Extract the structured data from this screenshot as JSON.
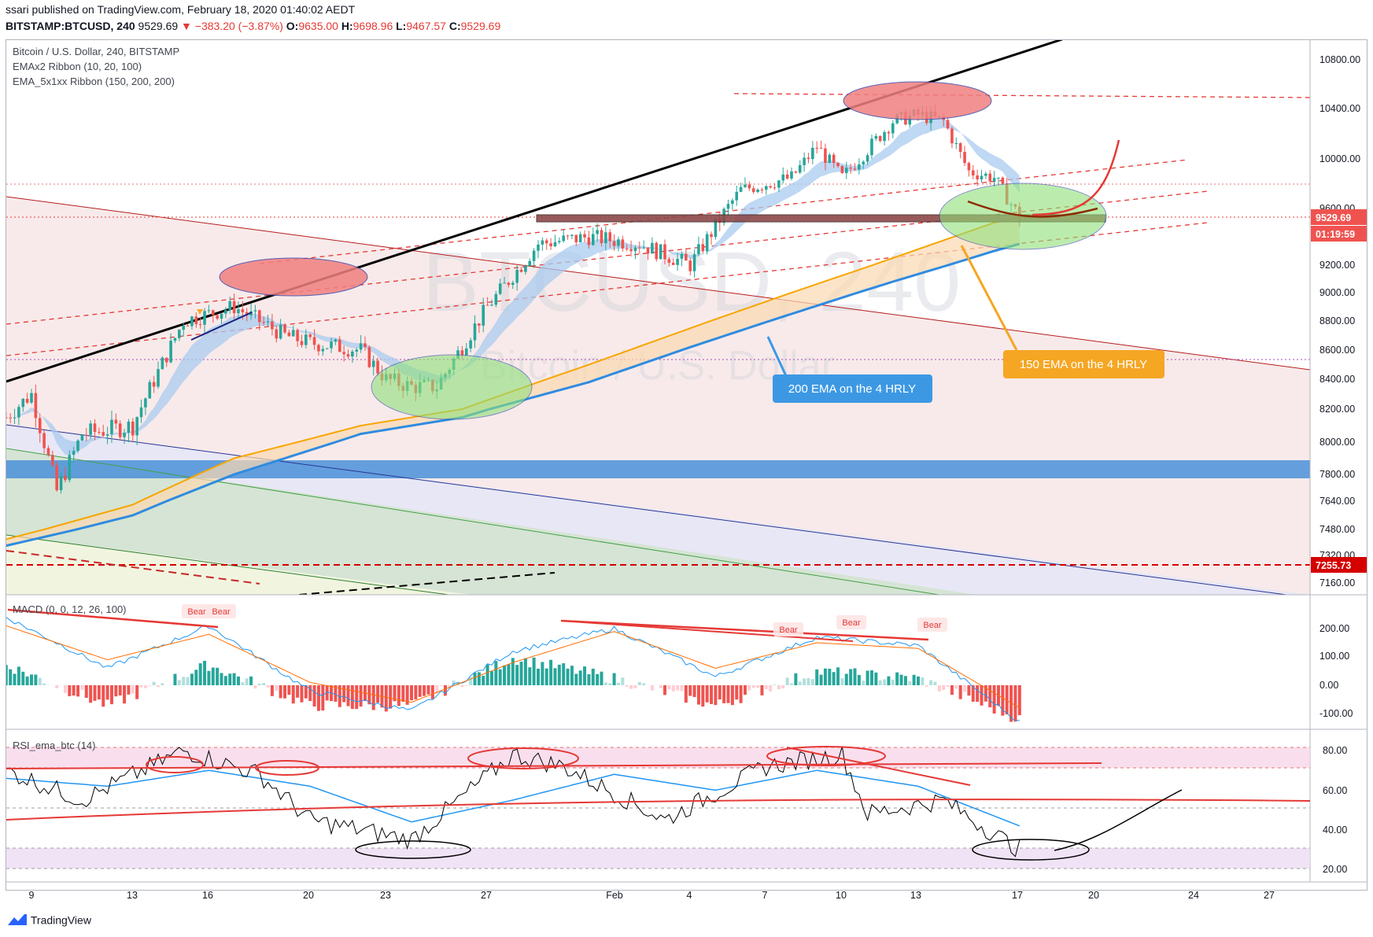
{
  "header": {
    "publisher": "ssari published on TradingView.com, February 18, 2020 01:40:02 AEDT",
    "symbol": "BITSTAMP:BTCUSD, 240",
    "last": "9529.69",
    "change": "−383.20 (−3.87%)",
    "o_label": "O:",
    "o": "9635.00",
    "h_label": "H:",
    "h": "9698.96",
    "l_label": "L:",
    "l": "9467.57",
    "c_label": "C:",
    "c": "9529.69"
  },
  "price_pane": {
    "title": "Bitcoin / U.S. Dollar, 240, BITSTAMP",
    "indicator1": "EMAx2 Ribbon (10, 20, 100)",
    "indicator2": "EMA_5x1xx Ribbon  (150, 200, 200)",
    "watermark_symbol": "BTCUSD, 240",
    "watermark_name": "Bitcoin / U.S. Dollar",
    "price_badge": "9529.69",
    "countdown_badge": "01:19:59",
    "level_badge": "7255.73",
    "callout_200": "200 EMA on the 4 HRLY",
    "callout_150": "150 EMA on the 4 HRLY"
  },
  "macd_pane": {
    "title": "MACD (0, 0, 12, 26, 100)",
    "bear_label": "Bear"
  },
  "rsi_pane": {
    "title": "RSI_ema_btc (14)"
  },
  "footer": {
    "brand": "TradingView"
  },
  "colors": {
    "up": "#26a69a",
    "down": "#ef5350",
    "ema150": "#f7a600",
    "ema200": "#2f8be0",
    "ribbon": "#a9cbef",
    "callout_blue": "#3d98e4",
    "callout_orange": "#f5a623"
  },
  "chart_data": [
    {
      "type": "line",
      "title": "Bitcoin / U.S. Dollar, 240, BITSTAMP",
      "x_tick_labels": [
        "9",
        "13",
        "16",
        "20",
        "23",
        "27",
        "Feb",
        "4",
        "7",
        "10",
        "13",
        "17",
        "20",
        "24",
        "27"
      ],
      "y_tick_labels": [
        "10800.00",
        "10400.00",
        "10000.00",
        "9600.00",
        "9200.00",
        "9000.00",
        "8800.00",
        "8600.00",
        "8400.00",
        "8200.00",
        "8000.00",
        "7800.00",
        "7640.00",
        "7480.00",
        "7320.00",
        "7160.00"
      ],
      "ylim": [
        7060,
        11000
      ],
      "series": [
        {
          "name": "BTCUSD",
          "x": [
            "Jan 8",
            "Jan 9",
            "Jan 10",
            "Jan 11",
            "Jan 13",
            "Jan 15",
            "Jan 17",
            "Jan 19",
            "Jan 20",
            "Jan 22",
            "Jan 23",
            "Jan 24",
            "Jan 25",
            "Jan 27",
            "Jan 29",
            "Jan 31",
            "Feb 2",
            "Feb 4",
            "Feb 6",
            "Feb 8",
            "Feb 9",
            "Feb 10",
            "Feb 12",
            "Feb 13",
            "Feb 14",
            "Feb 15",
            "Feb 16",
            "Feb 17"
          ],
          "values": [
            8150,
            8300,
            7700,
            8050,
            8100,
            8800,
            8900,
            8700,
            8650,
            8600,
            8400,
            8350,
            8350,
            8900,
            9350,
            9400,
            9350,
            9200,
            9750,
            9850,
            10100,
            9850,
            10300,
            10350,
            10300,
            9900,
            9850,
            9530
          ]
        },
        {
          "name": "EMA 150",
          "x": [
            "Jan 8",
            "Jan 13",
            "Jan 17",
            "Jan 22",
            "Jan 26",
            "Jan 31",
            "Feb 4",
            "Feb 8",
            "Feb 12",
            "Feb 16",
            "Feb 17"
          ],
          "values": [
            7420,
            7620,
            7900,
            8100,
            8200,
            8500,
            8750,
            9000,
            9250,
            9500,
            9540
          ]
        },
        {
          "name": "EMA 200",
          "x": [
            "Jan 8",
            "Jan 13",
            "Jan 17",
            "Jan 22",
            "Jan 26",
            "Jan 31",
            "Feb 4",
            "Feb 8",
            "Feb 12",
            "Feb 16",
            "Feb 17"
          ],
          "values": [
            7380,
            7560,
            7800,
            8050,
            8150,
            8380,
            8620,
            8850,
            9080,
            9300,
            9350
          ]
        }
      ],
      "price_lines": [
        9529.69,
        9780,
        8530,
        7255.73
      ]
    },
    {
      "type": "line",
      "title": "MACD (0, 0, 12, 26, 100)",
      "y_tick_labels": [
        "200.00",
        "100.00",
        "0.00",
        "-100.00"
      ],
      "ylim": [
        -180,
        300
      ],
      "series": [
        {
          "name": "MACD",
          "x": [
            "Jan 8",
            "Jan 12",
            "Jan 16",
            "Jan 20",
            "Jan 24",
            "Jan 28",
            "Feb 1",
            "Feb 5",
            "Feb 9",
            "Feb 13",
            "Feb 17"
          ],
          "values": [
            240,
            60,
            210,
            -20,
            -90,
            120,
            200,
            30,
            170,
            140,
            -130
          ]
        },
        {
          "name": "Signal",
          "x": [
            "Jan 8",
            "Jan 12",
            "Jan 16",
            "Jan 20",
            "Jan 24",
            "Jan 28",
            "Feb 1",
            "Feb 5",
            "Feb 9",
            "Feb 13",
            "Feb 17"
          ],
          "values": [
            210,
            90,
            180,
            10,
            -60,
            80,
            190,
            60,
            150,
            130,
            -80
          ]
        }
      ]
    },
    {
      "type": "line",
      "title": "RSI_ema_btc (14)",
      "y_tick_labels": [
        "80.00",
        "60.00",
        "40.00",
        "20.00"
      ],
      "ylim": [
        15,
        85
      ],
      "series": [
        {
          "name": "RSI",
          "x": [
            "Jan 8",
            "Jan 11",
            "Jan 15",
            "Jan 18",
            "Jan 20",
            "Jan 24",
            "Jan 28",
            "Jan 30",
            "Feb 3",
            "Feb 7",
            "Feb 10",
            "Feb 11",
            "Feb 14",
            "Feb 16",
            "Feb 17"
          ],
          "values": [
            70,
            55,
            80,
            68,
            45,
            35,
            78,
            72,
            45,
            72,
            78,
            48,
            55,
            38,
            30
          ]
        },
        {
          "name": "RSI EMA",
          "x": [
            "Jan 8",
            "Jan 12",
            "Jan 16",
            "Jan 20",
            "Jan 24",
            "Jan 28",
            "Feb 1",
            "Feb 5",
            "Feb 9",
            "Feb 13",
            "Feb 17"
          ],
          "values": [
            66,
            62,
            70,
            62,
            44,
            55,
            68,
            60,
            70,
            62,
            42
          ]
        }
      ]
    }
  ]
}
